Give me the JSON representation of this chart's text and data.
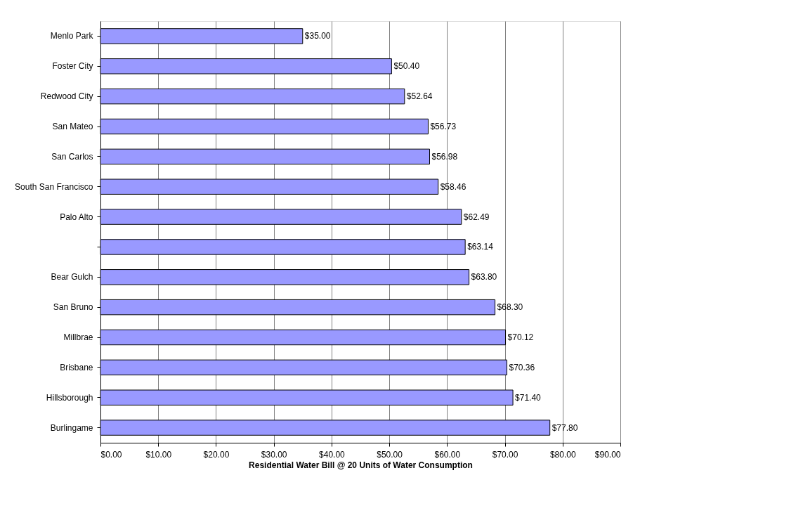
{
  "chart_data": {
    "type": "bar",
    "orientation": "horizontal",
    "xlabel": "Residential Water Bill @ 20 Units of Water Consumption",
    "categories": [
      "Menlo Park",
      "Foster City",
      "Redwood City",
      "San Mateo",
      "San Carlos",
      "South San Francisco",
      "Palo Alto",
      null,
      "Bear Gulch",
      "San Bruno",
      "Millbrae",
      "Brisbane",
      "Hillsborough",
      "Burlingame"
    ],
    "values": [
      35.0,
      50.4,
      52.64,
      56.73,
      56.98,
      58.46,
      62.49,
      63.14,
      63.8,
      68.3,
      70.12,
      70.36,
      71.4,
      77.8
    ],
    "value_labels": [
      "$35.00",
      "$50.40",
      "$52.64",
      "$56.73",
      "$56.98",
      "$58.46",
      "$62.49",
      "$63.14",
      "$63.80",
      "$68.30",
      "$70.12",
      "$70.36",
      "$71.40",
      "$77.80"
    ],
    "color": "#9999ff",
    "xlim": [
      0,
      90
    ],
    "xticks": [
      {
        "value": 0,
        "label": "$0.00"
      },
      {
        "value": 10,
        "label": "$10.00"
      },
      {
        "value": 20,
        "label": "$20.00"
      },
      {
        "value": 30,
        "label": "$30.00"
      },
      {
        "value": 40,
        "label": "$40.00"
      },
      {
        "value": 50,
        "label": "$50.00"
      },
      {
        "value": 60,
        "label": "$60.00"
      },
      {
        "value": 70,
        "label": "$70.00"
      },
      {
        "value": 80,
        "label": "$80.00"
      },
      {
        "value": 90,
        "label": "$90.00"
      }
    ],
    "grid": "x"
  }
}
